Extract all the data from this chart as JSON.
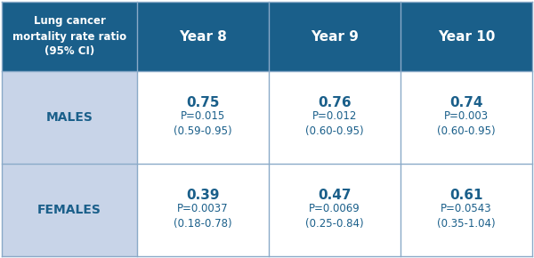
{
  "header_bg": "#1a5f8a",
  "header_text_color": "#ffffff",
  "row_label_bg": "#c8d4e8",
  "cell_bg": "#ffffff",
  "data_text_color": "#1a5f8a",
  "row_label_text_color": "#1a5f8a",
  "border_color": "#8aaac8",
  "col0_header": "Lung cancer\nmortality rate ratio\n(95% CI)",
  "col_headers": [
    "Year 8",
    "Year 9",
    "Year 10"
  ],
  "row_labels": [
    "MALES",
    "FEMALES"
  ],
  "data": [
    [
      {
        "main": "0.75",
        "p": "P=0.015",
        "ci": "(0.59-0.95)"
      },
      {
        "main": "0.76",
        "p": "P=0.012",
        "ci": "(0.60-0.95)"
      },
      {
        "main": "0.74",
        "p": "P=0.003",
        "ci": "(0.60-0.95)"
      }
    ],
    [
      {
        "main": "0.39",
        "p": "P=0.0037",
        "ci": "(0.18-0.78)"
      },
      {
        "main": "0.47",
        "p": "P=0.0069",
        "ci": "(0.25-0.84)"
      },
      {
        "main": "0.61",
        "p": "P=0.0543",
        "ci": "(0.35-1.04)"
      }
    ]
  ],
  "figsize": [
    6.0,
    2.9
  ],
  "dpi": 100
}
